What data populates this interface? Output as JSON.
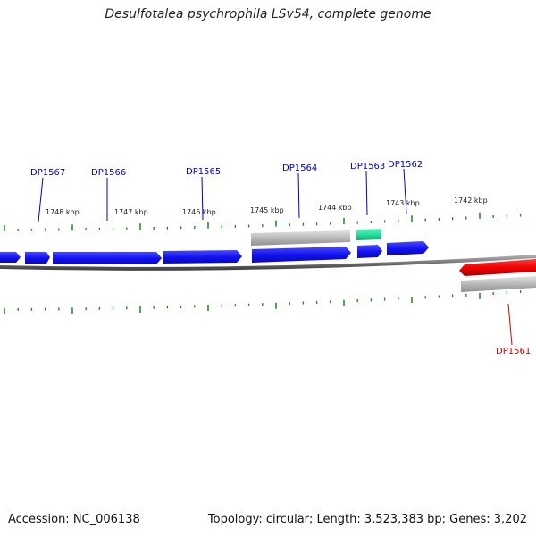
{
  "title": "Desulfotalea psychrophila LSv54, complete genome",
  "footer": {
    "accession": "Accession: NC_006138",
    "summary": "Topology: circular; Length: 3,523,383 bp; Genes: 3,202"
  },
  "colors": {
    "forward_gene": "#1010ee",
    "reverse_gene": "#ee0000",
    "rna_gene": "#b8b8b8",
    "highlight_gene": "#22dd99",
    "tick": "#2a8a2a",
    "backbone": "#777777",
    "forward_label": "#0000cc",
    "reverse_label": "#cc0000"
  },
  "kbp_markers": [
    "1748 kbp",
    "1747 kbp",
    "1746 kbp",
    "1745 kbp",
    "1744 kbp",
    "1743 kbp",
    "1742 kbp"
  ],
  "gene_labels": [
    {
      "name": "DP1567",
      "strand": "forward"
    },
    {
      "name": "DP1566",
      "strand": "forward"
    },
    {
      "name": "DP1565",
      "strand": "forward"
    },
    {
      "name": "DP1564",
      "strand": "forward"
    },
    {
      "name": "DP1563",
      "strand": "forward"
    },
    {
      "name": "DP1562",
      "strand": "forward"
    },
    {
      "name": "DP1561",
      "strand": "reverse"
    }
  ]
}
